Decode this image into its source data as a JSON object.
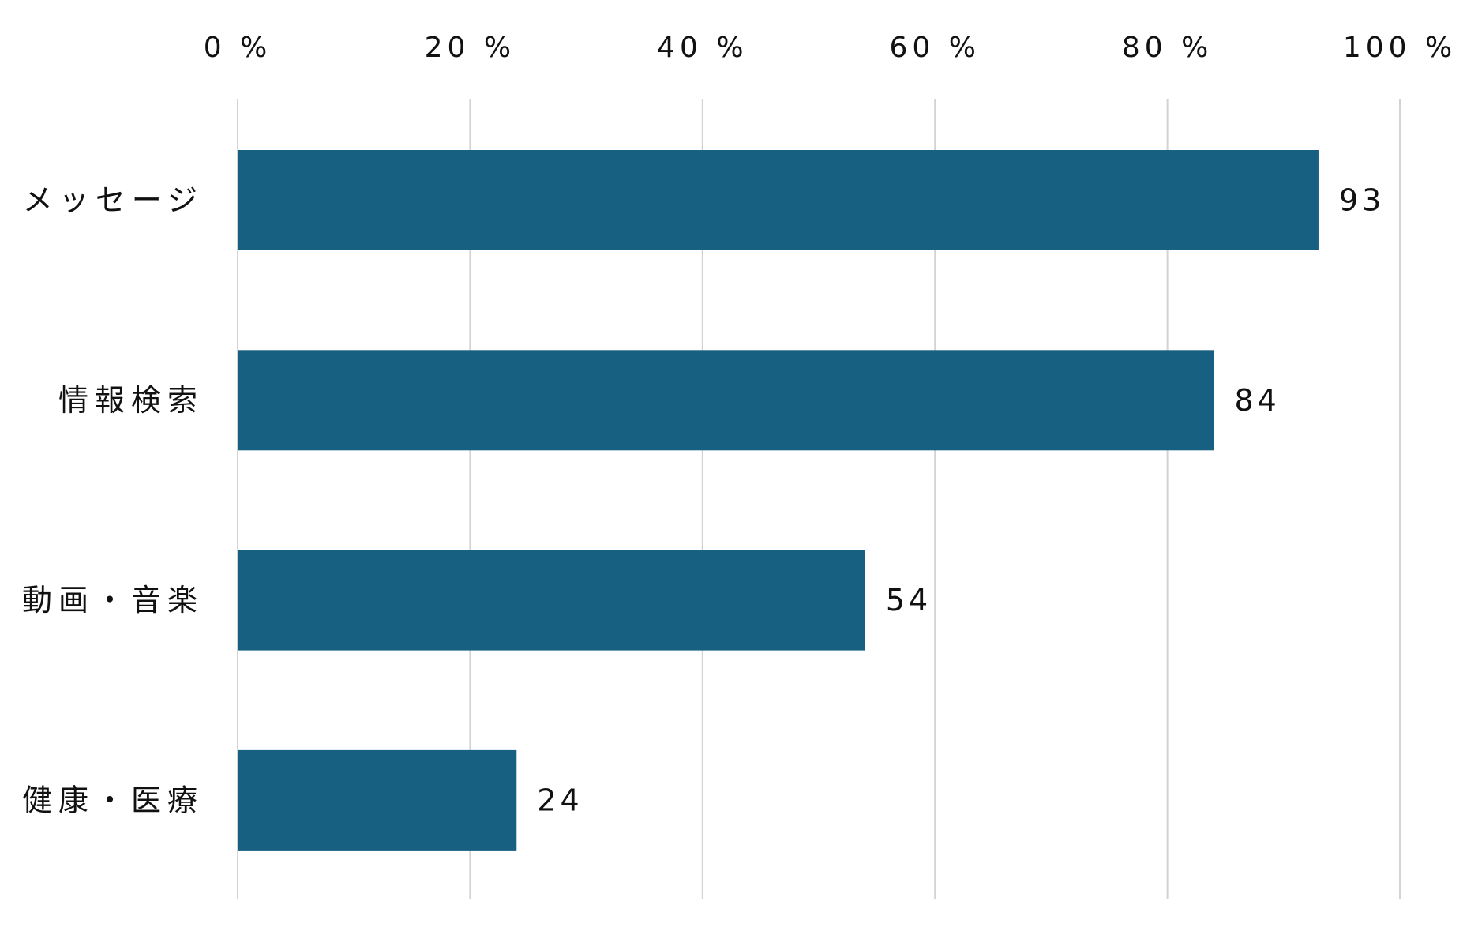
{
  "chart_data": {
    "type": "bar",
    "orientation": "horizontal",
    "categories": [
      "メッセージ",
      "情報検索",
      "動画・音楽",
      "健康・医療"
    ],
    "values": [
      93,
      84,
      54,
      24
    ],
    "value_labels": [
      "93",
      "84",
      "54",
      "24"
    ],
    "xlim": [
      0,
      100
    ],
    "x_ticks": [
      0,
      20,
      40,
      60,
      80,
      100
    ],
    "x_tick_labels": [
      "0 %",
      "20 %",
      "40 %",
      "60 %",
      "80 %",
      "100 %"
    ],
    "x_axis_position": "top",
    "grid": true,
    "legend": "none",
    "bar_color": "#186081",
    "grid_color": "#d3d3d3",
    "title": "",
    "xlabel": "",
    "ylabel": ""
  }
}
